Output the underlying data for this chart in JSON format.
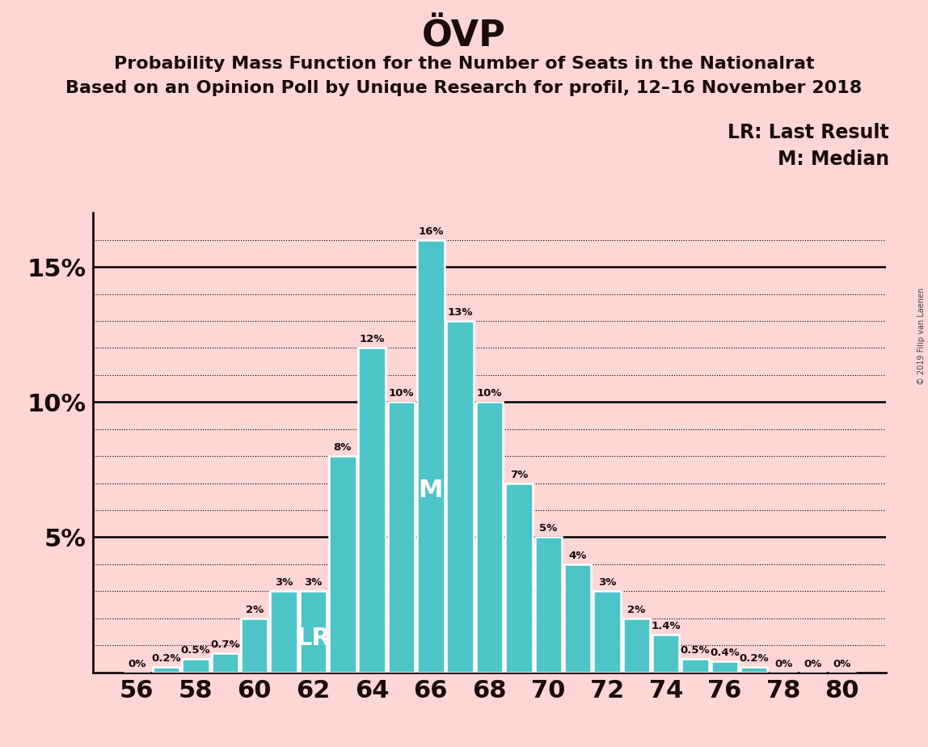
{
  "title": "ÖVP",
  "subtitle1": "Probability Mass Function for the Number of Seats in the Nationalrat",
  "subtitle2": "Based on an Opinion Poll by Unique Research for profil, 12–16 November 2018",
  "watermark": "© 2019 Filip van Laenen",
  "seats": [
    56,
    57,
    58,
    59,
    60,
    61,
    62,
    63,
    64,
    65,
    66,
    67,
    68,
    69,
    70,
    71,
    72,
    73,
    74,
    75,
    76,
    77,
    78,
    79,
    80
  ],
  "values": [
    0.0,
    0.2,
    0.5,
    0.7,
    2.0,
    3.0,
    3.0,
    8.0,
    12.0,
    10.0,
    16.0,
    13.0,
    10.0,
    7.0,
    5.0,
    4.0,
    3.0,
    2.0,
    1.4,
    0.5,
    0.4,
    0.2,
    0.0,
    0.0,
    0.0
  ],
  "labels": [
    "0%",
    "0.2%",
    "0.5%",
    "0.7%",
    "2%",
    "3%",
    "3%",
    "8%",
    "12%",
    "10%",
    "16%",
    "13%",
    "10%",
    "7%",
    "5%",
    "4%",
    "3%",
    "2%",
    "1.4%",
    "0.5%",
    "0.4%",
    "0.2%",
    "0%",
    "0%",
    "0%"
  ],
  "bar_color": "#4DC5C8",
  "background_color": "#FFD6D6",
  "text_color": "#1a0a0a",
  "lr_seat": 62,
  "median_seat": 66,
  "lr_label": "LR",
  "median_label": "M",
  "legend_lr": "LR: Last Result",
  "legend_m": "M: Median",
  "ylim": [
    0,
    17
  ],
  "solid_grid_values": [
    5,
    10,
    15
  ],
  "dotted_grid_values": [
    1,
    2,
    3,
    4,
    6,
    7,
    8,
    9,
    11,
    12,
    13,
    14,
    16
  ],
  "grid_color": "#000000"
}
